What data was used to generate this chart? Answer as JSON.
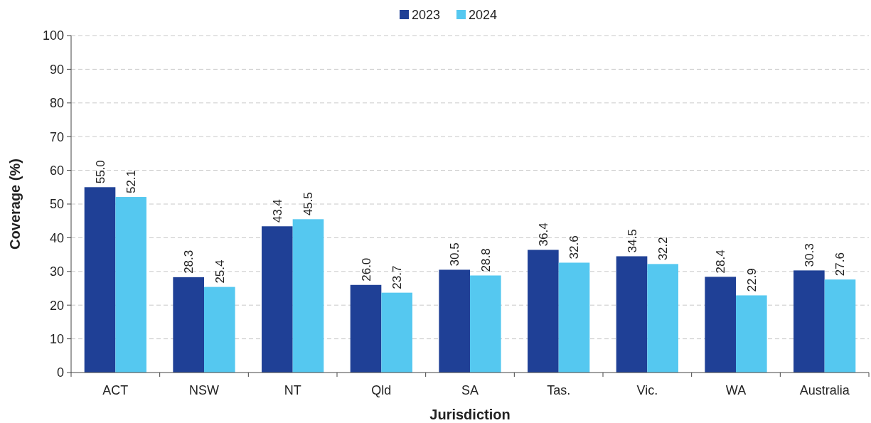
{
  "chart_data": {
    "type": "bar",
    "xlabel": "Jurisdiction",
    "ylabel": "Coverage (%)",
    "categories": [
      "ACT",
      "NSW",
      "NT",
      "Qld",
      "SA",
      "Tas.",
      "Vic.",
      "WA",
      "Australia"
    ],
    "series": [
      {
        "name": "2023",
        "color": "#1f4096",
        "values": [
          55.0,
          28.3,
          43.4,
          26.0,
          30.5,
          36.4,
          34.5,
          28.4,
          30.3
        ],
        "value_labels": [
          "55.0",
          "28.3",
          "43.4",
          "26.0",
          "30.5",
          "36.4",
          "34.5",
          "28.4",
          "30.3"
        ]
      },
      {
        "name": "2024",
        "color": "#55c8f0",
        "values": [
          52.1,
          25.4,
          45.5,
          23.7,
          28.8,
          32.6,
          32.2,
          22.9,
          27.6
        ],
        "value_labels": [
          "52.1",
          "25.4",
          "45.5",
          "23.7",
          "28.8",
          "32.6",
          "32.2",
          "22.9",
          "27.6"
        ]
      }
    ],
    "ylim": [
      0,
      100
    ],
    "yticks": [
      0,
      10,
      20,
      30,
      40,
      50,
      60,
      70,
      80,
      90,
      100
    ],
    "grid": "y",
    "legend": "top"
  }
}
